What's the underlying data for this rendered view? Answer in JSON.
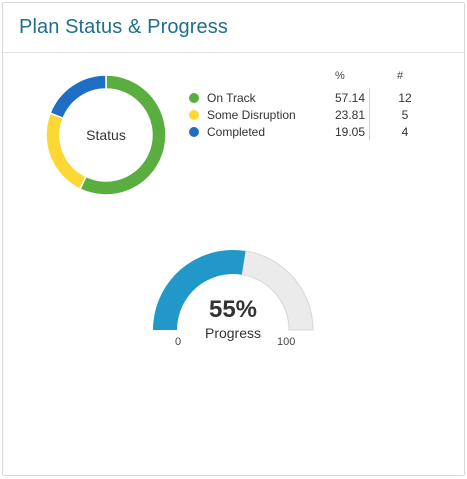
{
  "card": {
    "title": "Plan Status & Progress"
  },
  "status_chart": {
    "center_label": "Status",
    "header_pct": "%",
    "header_count": "#",
    "items": [
      {
        "label": "On Track",
        "pct": "57.14",
        "count": "12",
        "color": "#5aad3f"
      },
      {
        "label": "Some Disruption",
        "pct": "23.81",
        "count": "5",
        "color": "#fdd835"
      },
      {
        "label": "Completed",
        "pct": "19.05",
        "count": "4",
        "color": "#1e6fc3"
      }
    ]
  },
  "progress_gauge": {
    "value_text": "55%",
    "value": 55,
    "label": "Progress",
    "min_label": "0",
    "max_label": "100",
    "fill_color": "#2198c9",
    "track_color": "#ebebeb"
  },
  "chart_data": [
    {
      "type": "pie",
      "categories": [
        "On Track",
        "Some Disruption",
        "Completed"
      ],
      "values": [
        57.14,
        23.81,
        19.05
      ],
      "counts": [
        12,
        5,
        4
      ],
      "title": "Status"
    },
    {
      "type": "gauge",
      "value": 55,
      "range": [
        0,
        100
      ],
      "title": "Progress"
    }
  ]
}
